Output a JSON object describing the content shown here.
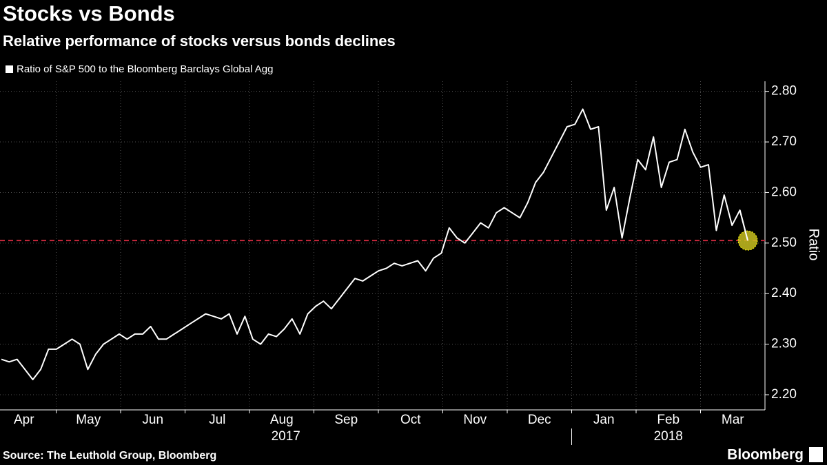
{
  "chart_data": {
    "type": "line",
    "title": "Stocks vs Bonds",
    "subtitle": "Relative performance of stocks versus bonds declines",
    "year_groups": [
      {
        "label": "2017",
        "months": [
          "Apr",
          "May",
          "Jun",
          "Jul",
          "Aug",
          "Sep",
          "Oct",
          "Nov",
          "Dec"
        ]
      },
      {
        "label": "2018",
        "months": [
          "Jan",
          "Feb",
          "Mar"
        ]
      }
    ],
    "series": [
      {
        "name": "Ratio of S&P 500 to the Bloomberg Barclays Global Agg",
        "color": "#ffffff",
        "values": [
          2.27,
          2.265,
          2.27,
          2.25,
          2.23,
          2.25,
          2.29,
          2.29,
          2.3,
          2.31,
          2.3,
          2.25,
          2.28,
          2.3,
          2.31,
          2.32,
          2.31,
          2.32,
          2.32,
          2.335,
          2.31,
          2.31,
          2.32,
          2.33,
          2.34,
          2.35,
          2.36,
          2.355,
          2.35,
          2.36,
          2.32,
          2.355,
          2.31,
          2.3,
          2.32,
          2.315,
          2.33,
          2.35,
          2.32,
          2.36,
          2.375,
          2.385,
          2.37,
          2.39,
          2.41,
          2.43,
          2.425,
          2.435,
          2.445,
          2.45,
          2.46,
          2.455,
          2.46,
          2.465,
          2.445,
          2.47,
          2.48,
          2.53,
          2.51,
          2.5,
          2.52,
          2.54,
          2.53,
          2.56,
          2.57,
          2.56,
          2.55,
          2.58,
          2.62,
          2.64,
          2.67,
          2.7,
          2.73,
          2.735,
          2.765,
          2.725,
          2.73,
          2.565,
          2.61,
          2.51,
          2.59,
          2.665,
          2.645,
          2.71,
          2.61,
          2.66,
          2.665,
          2.725,
          2.68,
          2.65,
          2.655,
          2.525,
          2.595,
          2.535,
          2.565,
          2.505
        ]
      }
    ],
    "reference_line": {
      "value": 2.505,
      "color": "#c8283c"
    },
    "highlight_color": "#c8c020",
    "y_axis_label": "Ratio",
    "y_axis_side": "right",
    "ylim": [
      2.17,
      2.82
    ],
    "yticks": [
      {
        "value": 2.2,
        "label": "2.20"
      },
      {
        "value": 2.3,
        "label": "2.30"
      },
      {
        "value": 2.4,
        "label": "2.40"
      },
      {
        "value": 2.5,
        "label": "2.50"
      },
      {
        "value": 2.6,
        "label": "2.60"
      },
      {
        "value": 2.7,
        "label": "2.70"
      },
      {
        "value": 2.8,
        "label": "2.80"
      }
    ],
    "grid": true,
    "source": "Source: The Leuthold Group, Bloomberg",
    "brand": "Bloomberg"
  }
}
